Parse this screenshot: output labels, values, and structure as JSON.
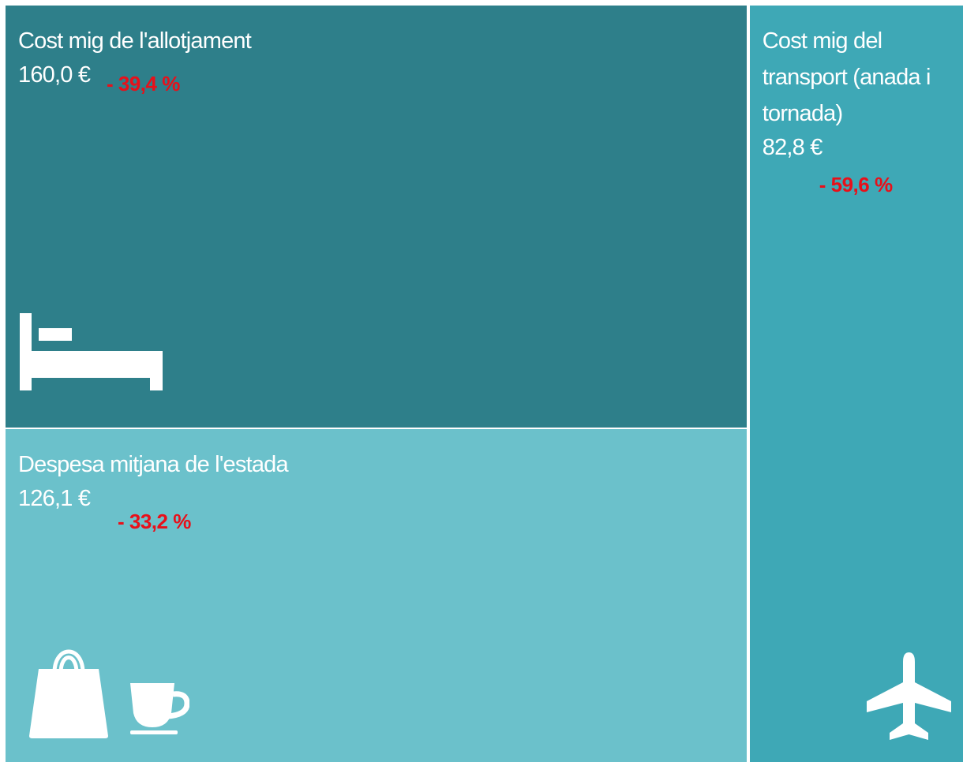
{
  "chart_data": {
    "type": "treemap",
    "categories": [
      "Cost mig de l'allotjament",
      "Despesa mitjana de l'estada",
      "Cost mig del transport (anada i tornada)"
    ],
    "values": [
      160.0,
      126.1,
      82.8
    ],
    "value_labels": [
      "160,0 €",
      "126,1 €",
      "82,8 €"
    ],
    "annotations": [
      "- 39,4 %",
      "- 33,2 %",
      "- 59,6 %"
    ],
    "colors": [
      "#2e7f8a",
      "#6bc1cb",
      "#3ea8b6"
    ],
    "annotation_color": "#e8101a"
  }
}
